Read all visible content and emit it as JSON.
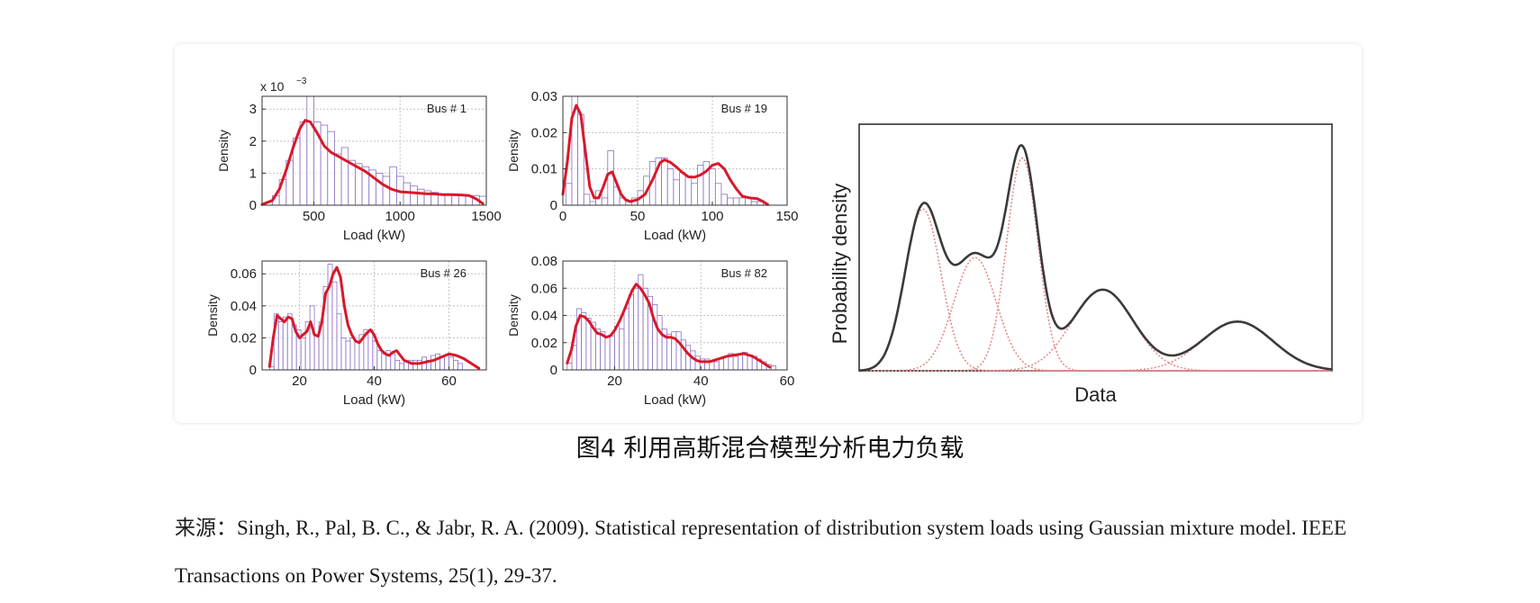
{
  "figure": {
    "caption": "图4 利用高斯混合模型分析电力负载",
    "source_prefix": "来源：",
    "source_text": "Singh, R., Pal, B. C., & Jabr, R. A. (2009). Statistical representation of distribution system loads using Gaussian mixture model. IEEE Transactions on Power Systems, 25(1), 29-37."
  },
  "colors": {
    "fit_line": "#d8182a",
    "histogram": "#8c6fc2",
    "mixture_line": "#3a3a3a",
    "components": "#e48a8a",
    "grid": "#c4c4c4"
  },
  "chart_data": [
    {
      "type": "bar",
      "title": "Bus # 1",
      "xlabel": "Load (kW)",
      "ylabel": "Density",
      "scale_note": "x 10",
      "scale_exp": "−3",
      "xlim": [
        200,
        1500
      ],
      "ylim": [
        0,
        3.4
      ],
      "xticks": [
        500,
        1000,
        1500
      ],
      "yticks": [
        0,
        1,
        2,
        3
      ],
      "grid": true,
      "histogram": {
        "bin_start": 220,
        "bin_width": 40,
        "values": [
          0.1,
          0.3,
          0.8,
          1.4,
          2.1,
          2.6,
          3.4,
          2.6,
          2.5,
          2.3,
          1.6,
          1.8,
          1.4,
          1.3,
          1.2,
          1.1,
          1.0,
          0.9,
          1.2,
          0.9,
          0.7,
          0.6,
          0.5,
          0.45,
          0.4,
          0.35,
          0.35,
          0.3,
          0.3,
          0.3,
          0.3,
          0.28,
          0.25
        ]
      },
      "fit_line": {
        "x": [
          200,
          260,
          300,
          340,
          380,
          420,
          450,
          480,
          520,
          560,
          600,
          650,
          700,
          750,
          800,
          850,
          900,
          950,
          1000,
          1050,
          1100,
          1150,
          1200,
          1250,
          1300,
          1350,
          1400,
          1440,
          1480
        ],
        "y": [
          0.02,
          0.15,
          0.5,
          1.1,
          1.8,
          2.4,
          2.65,
          2.6,
          2.25,
          1.85,
          1.65,
          1.5,
          1.35,
          1.2,
          1.05,
          0.85,
          0.65,
          0.5,
          0.42,
          0.4,
          0.38,
          0.36,
          0.35,
          0.33,
          0.33,
          0.32,
          0.3,
          0.2,
          0.05
        ]
      }
    },
    {
      "type": "bar",
      "title": "Bus # 19",
      "xlabel": "Load (kW)",
      "ylabel": "Density",
      "xlim": [
        0,
        150
      ],
      "ylim": [
        0,
        0.03
      ],
      "xticks": [
        0,
        50,
        100,
        150
      ],
      "yticks": [
        0,
        0.01,
        0.02,
        0.03
      ],
      "grid": true,
      "histogram": {
        "bin_start": 2,
        "bin_width": 4,
        "values": [
          0.006,
          0.03,
          0.025,
          0.003,
          0.001,
          0.004,
          0.002,
          0.015,
          0.005,
          0.002,
          0.001,
          0.002,
          0.004,
          0.008,
          0.012,
          0.013,
          0.013,
          0.01,
          0.007,
          0.009,
          0.008,
          0.006,
          0.011,
          0.012,
          0.01,
          0.006,
          0.003,
          0.002,
          0.002,
          0.002,
          0.002,
          0.001,
          0.001
        ]
      },
      "fit_line": {
        "x": [
          0,
          3,
          6,
          9,
          12,
          15,
          18,
          21,
          24,
          27,
          30,
          33,
          36,
          39,
          42,
          45,
          50,
          55,
          60,
          65,
          68,
          72,
          76,
          80,
          84,
          88,
          92,
          96,
          100,
          104,
          108,
          112,
          116,
          120,
          125,
          130,
          134,
          137
        ],
        "y": [
          0.003,
          0.012,
          0.024,
          0.0275,
          0.025,
          0.015,
          0.005,
          0.002,
          0.002,
          0.005,
          0.0085,
          0.0092,
          0.006,
          0.003,
          0.0015,
          0.001,
          0.0015,
          0.003,
          0.007,
          0.0117,
          0.0125,
          0.0118,
          0.0105,
          0.009,
          0.0078,
          0.0077,
          0.0083,
          0.0094,
          0.011,
          0.0115,
          0.01,
          0.007,
          0.0045,
          0.0025,
          0.002,
          0.0018,
          0.001,
          0.0002
        ]
      }
    },
    {
      "type": "bar",
      "title": "Bus # 26",
      "xlabel": "Load (kW)",
      "ylabel": "Density",
      "xlim": [
        10,
        70
      ],
      "ylim": [
        0,
        0.068
      ],
      "xticks": [
        20,
        40,
        60
      ],
      "yticks": [
        0,
        0.02,
        0.04,
        0.06
      ],
      "grid": true,
      "histogram": {
        "bin_start": 12,
        "bin_width": 1.2,
        "values": [
          0.002,
          0.035,
          0.03,
          0.033,
          0.035,
          0.028,
          0.025,
          0.02,
          0.03,
          0.04,
          0.022,
          0.03,
          0.052,
          0.066,
          0.055,
          0.035,
          0.02,
          0.018,
          0.02,
          0.018,
          0.022,
          0.025,
          0.025,
          0.018,
          0.012,
          0.01,
          0.012,
          0.01,
          0.006,
          0.004,
          0.005,
          0.006,
          0.006,
          0.006,
          0.008,
          0.006,
          0.009,
          0.01,
          0.008,
          0.009,
          0.008,
          0.006,
          0.004
        ]
      },
      "fit_line": {
        "x": [
          12,
          13,
          14,
          15,
          16,
          17,
          18,
          19,
          20,
          21,
          22,
          23,
          24,
          25,
          26,
          27,
          28,
          29,
          30,
          31,
          32,
          33,
          34,
          35,
          36,
          37,
          38,
          39,
          40,
          41,
          42,
          43,
          44,
          45,
          46,
          47,
          48,
          50,
          52,
          54,
          56,
          58,
          60,
          62,
          64,
          66,
          68
        ],
        "y": [
          0.002,
          0.02,
          0.034,
          0.032,
          0.03,
          0.033,
          0.032,
          0.024,
          0.02,
          0.022,
          0.024,
          0.03,
          0.022,
          0.021,
          0.03,
          0.048,
          0.052,
          0.06,
          0.064,
          0.058,
          0.04,
          0.028,
          0.022,
          0.018,
          0.017,
          0.02,
          0.023,
          0.025,
          0.022,
          0.016,
          0.012,
          0.01,
          0.009,
          0.011,
          0.012,
          0.009,
          0.006,
          0.004,
          0.004,
          0.005,
          0.006,
          0.008,
          0.01,
          0.009,
          0.007,
          0.004,
          0.001
        ]
      }
    },
    {
      "type": "bar",
      "title": "Bus # 82",
      "xlabel": "Load (kW)",
      "ylabel": "Density",
      "xlim": [
        8,
        60
      ],
      "ylim": [
        0,
        0.08
      ],
      "xticks": [
        20,
        40,
        60
      ],
      "yticks": [
        0,
        0.02,
        0.04,
        0.06,
        0.08
      ],
      "grid": true,
      "histogram": {
        "bin_start": 9,
        "bin_width": 1.1,
        "values": [
          0.005,
          0.018,
          0.045,
          0.042,
          0.038,
          0.035,
          0.03,
          0.028,
          0.024,
          0.025,
          0.032,
          0.03,
          0.045,
          0.055,
          0.06,
          0.07,
          0.06,
          0.054,
          0.048,
          0.04,
          0.03,
          0.026,
          0.028,
          0.028,
          0.022,
          0.018,
          0.014,
          0.01,
          0.008,
          0.008,
          0.006,
          0.006,
          0.008,
          0.01,
          0.012,
          0.01,
          0.012,
          0.013,
          0.011,
          0.01,
          0.008,
          0.006,
          0.004,
          0.003
        ]
      },
      "fit_line": {
        "x": [
          9,
          10,
          11,
          12,
          13,
          14,
          15,
          16,
          17,
          18,
          19,
          20,
          21,
          22,
          23,
          24,
          25,
          26,
          27,
          28,
          29,
          30,
          31,
          32,
          33,
          34,
          35,
          36,
          37,
          38,
          39,
          40,
          42,
          44,
          46,
          48,
          50,
          52,
          54,
          56
        ],
        "y": [
          0.005,
          0.015,
          0.032,
          0.04,
          0.039,
          0.036,
          0.031,
          0.027,
          0.026,
          0.024,
          0.025,
          0.029,
          0.035,
          0.042,
          0.05,
          0.058,
          0.063,
          0.06,
          0.055,
          0.049,
          0.038,
          0.03,
          0.026,
          0.024,
          0.024,
          0.023,
          0.02,
          0.016,
          0.012,
          0.009,
          0.007,
          0.006,
          0.006,
          0.008,
          0.01,
          0.011,
          0.012,
          0.01,
          0.006,
          0.002
        ]
      }
    },
    {
      "type": "line",
      "xlabel": "Data",
      "ylabel": "Probability density",
      "ticks": false,
      "xlim": [
        0,
        1
      ],
      "ylim": [
        0,
        1.12
      ],
      "mixture_components": [
        {
          "mean": 0.135,
          "sd": 0.038,
          "weight": 0.07
        },
        {
          "mean": 0.245,
          "sd": 0.045,
          "weight": 0.058
        },
        {
          "mean": 0.345,
          "sd": 0.033,
          "weight": 0.08
        },
        {
          "mean": 0.515,
          "sd": 0.065,
          "weight": 0.06
        },
        {
          "mean": 0.8,
          "sd": 0.075,
          "weight": 0.042
        }
      ]
    }
  ]
}
